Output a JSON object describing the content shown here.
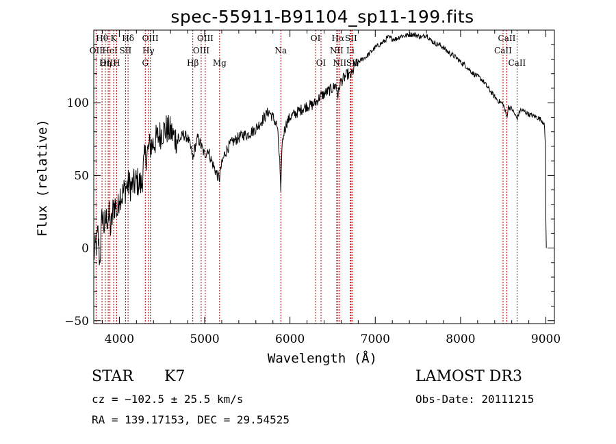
{
  "chart_data": {
    "type": "line",
    "title": "spec-55911-B91104_sp11-199.fits",
    "xlabel": "Wavelength (Å)",
    "ylabel": "Flux (relative)",
    "xlim": [
      3700,
      9100
    ],
    "ylim": [
      -52,
      150
    ],
    "xticks": [
      4000,
      5000,
      6000,
      7000,
      8000,
      9000
    ],
    "yticks": [
      -50,
      0,
      50,
      100
    ],
    "x_minor_step": 200,
    "y_minor_step": 10,
    "series": [
      {
        "name": "flux",
        "x": [
          3700,
          3730,
          3750,
          3770,
          3800,
          3820,
          3850,
          3880,
          3900,
          3930,
          3950,
          3980,
          4000,
          4030,
          4060,
          4080,
          4100,
          4150,
          4200,
          4230,
          4260,
          4280,
          4300,
          4330,
          4360,
          4400,
          4450,
          4500,
          4550,
          4600,
          4650,
          4700,
          4750,
          4800,
          4850,
          4861,
          4880,
          4920,
          4960,
          5000,
          5040,
          5080,
          5120,
          5150,
          5175,
          5190,
          5230,
          5270,
          5310,
          5350,
          5400,
          5450,
          5500,
          5550,
          5600,
          5650,
          5700,
          5750,
          5800,
          5850,
          5880,
          5893,
          5905,
          5930,
          5960,
          6000,
          6050,
          6100,
          6150,
          6200,
          6250,
          6300,
          6350,
          6400,
          6450,
          6500,
          6540,
          6563,
          6590,
          6620,
          6650,
          6680,
          6700,
          6730,
          6760,
          6800,
          6850,
          6900,
          6950,
          7000,
          7050,
          7100,
          7150,
          7200,
          7250,
          7300,
          7350,
          7400,
          7450,
          7500,
          7550,
          7600,
          7650,
          7700,
          7750,
          7800,
          7850,
          7900,
          7950,
          8000,
          8050,
          8100,
          8150,
          8200,
          8250,
          8300,
          8350,
          8400,
          8450,
          8500,
          8542,
          8560,
          8600,
          8662,
          8700,
          8750,
          8800,
          8850,
          8900,
          8950,
          8980,
          8995,
          9000,
          9005
        ],
        "values": [
          -5,
          2,
          10,
          -10,
          25,
          15,
          20,
          22,
          12,
          28,
          30,
          24,
          38,
          36,
          40,
          42,
          44,
          42,
          46,
          45,
          43,
          55,
          62,
          66,
          70,
          72,
          76,
          80,
          82,
          80,
          76,
          74,
          78,
          76,
          66,
          60,
          68,
          76,
          70,
          64,
          68,
          60,
          54,
          50,
          48,
          55,
          64,
          69,
          72,
          74,
          76,
          78,
          78,
          80,
          82,
          86,
          90,
          94,
          90,
          84,
          60,
          35,
          70,
          80,
          86,
          90,
          92,
          94,
          96,
          98,
          98,
          100,
          104,
          106,
          108,
          110,
          112,
          105,
          114,
          116,
          118,
          120,
          118,
          120,
          126,
          128,
          130,
          132,
          135,
          138,
          140,
          142,
          145,
          144,
          144,
          146,
          146,
          147,
          147,
          146,
          145,
          147,
          143,
          141,
          140,
          138,
          135,
          133,
          131,
          128,
          126,
          123,
          120,
          118,
          116,
          112,
          108,
          104,
          101,
          99,
          90,
          97,
          96,
          89,
          95,
          94,
          92,
          91,
          90,
          88,
          86,
          70,
          20,
          0
        ]
      }
    ],
    "emission_lines": [
      {
        "label": "Hθ",
        "x": 3797,
        "row": 0
      },
      {
        "label": "OII",
        "x": 3727,
        "row": 1
      },
      {
        "label": "OIII",
        "x": 3869,
        "row": 2
      },
      {
        "label": "K",
        "x": 3933,
        "row": 0
      },
      {
        "label": "HeI",
        "x": 3889,
        "row": 1
      },
      {
        "label": "Hη",
        "x": 3835,
        "row": 2
      },
      {
        "label": "Hδ",
        "x": 4102,
        "row": 0
      },
      {
        "label": "SII",
        "x": 4072,
        "row": 1
      },
      {
        "label": "H",
        "x": 3968,
        "row": 2
      },
      {
        "label": "OIII",
        "x": 4363,
        "row": 0
      },
      {
        "label": "Hγ",
        "x": 4340,
        "row": 1
      },
      {
        "label": "G",
        "x": 4304,
        "row": 2
      },
      {
        "label": "OIII",
        "x": 5007,
        "row": 0
      },
      {
        "label": "OIII",
        "x": 4959,
        "row": 1
      },
      {
        "label": "Hβ",
        "x": 4861,
        "row": 2
      },
      {
        "label": "Mg",
        "x": 5175,
        "row": 2
      },
      {
        "label": "Na",
        "x": 5893,
        "row": 1
      },
      {
        "label": "OI",
        "x": 6300,
        "row": 0
      },
      {
        "label": "OI",
        "x": 6364,
        "row": 2
      },
      {
        "label": "Hα",
        "x": 6563,
        "row": 0
      },
      {
        "label": "NII",
        "x": 6548,
        "row": 1
      },
      {
        "label": "NII",
        "x": 6583,
        "row": 2
      },
      {
        "label": "SII",
        "x": 6716,
        "row": 0
      },
      {
        "label": "Li",
        "x": 6708,
        "row": 1
      },
      {
        "label": "SII",
        "x": 6731,
        "row": 2
      },
      {
        "label": "CaII",
        "x": 8542,
        "row": 0
      },
      {
        "label": "CaII",
        "x": 8498,
        "row": 1
      },
      {
        "label": "CaII",
        "x": 8662,
        "row": 2
      }
    ]
  },
  "footer": {
    "object_class": "STAR",
    "subclass": "K7",
    "survey": "LAMOST DR3",
    "cz": "cz = −102.5 ± 25.5 km/s",
    "obs_date": "Obs-Date: 20111215",
    "coords": "RA = 139.17153, DEC =  29.54525"
  },
  "colors": {
    "spectrum": "#000000",
    "line_marker": "#b00000",
    "axes": "#000000"
  }
}
